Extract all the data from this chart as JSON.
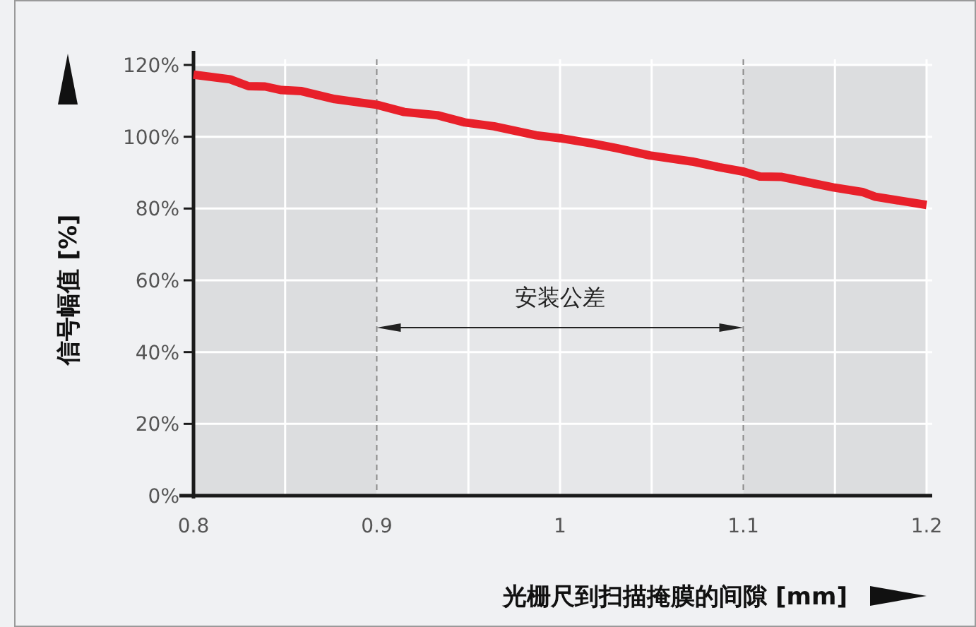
{
  "chart_data": {
    "type": "line",
    "xlabel": "光栅尺到扫描掩膜的间隙 [mm]",
    "ylabel": "信号幅值 [%]",
    "x": [
      0.8,
      0.82,
      0.83,
      0.839,
      0.848,
      0.859,
      0.877,
      0.9,
      0.915,
      0.933,
      0.948,
      0.964,
      0.987,
      1.0,
      1.018,
      1.031,
      1.049,
      1.072,
      1.087,
      1.1,
      1.109,
      1.121,
      1.149,
      1.165,
      1.172,
      1.2
    ],
    "series": [
      {
        "color": "#e8202a",
        "values": [
          117.3,
          116,
          114.1,
          114,
          113,
          112.7,
          110.5,
          108.9,
          106.9,
          106,
          104,
          102.9,
          100.4,
          99.6,
          98.1,
          96.8,
          94.8,
          93.1,
          91.5,
          90.3,
          88.9,
          88.8,
          85.9,
          84.6,
          83.3,
          81
        ]
      }
    ],
    "xlim": [
      0.8,
      1.2
    ],
    "xticks": [
      0.8,
      {
        "value": 0.85,
        "label": null
      },
      0.9,
      {
        "value": 0.95,
        "label": null
      },
      1,
      {
        "value": 1.05,
        "label": null
      },
      1.1,
      {
        "value": 1.15,
        "label": null
      },
      1.2
    ],
    "ylim": [
      0,
      120
    ],
    "yticks": [
      {
        "value": 0,
        "label": "0%"
      },
      {
        "value": 20,
        "label": "20%"
      },
      {
        "value": 40,
        "label": "40%"
      },
      {
        "value": 60,
        "label": "60%"
      },
      {
        "value": 80,
        "label": "80%"
      },
      {
        "value": 100,
        "label": "100%"
      },
      {
        "value": 120,
        "label": "120%"
      }
    ],
    "grid": true,
    "bands": [
      {
        "axis": "x",
        "from": 0.8,
        "to": 0.9,
        "color": "#dcdddf"
      },
      {
        "axis": "x",
        "from": 0.9,
        "to": 1.1,
        "color": "#e6e7e9",
        "label": "安装公差"
      },
      {
        "axis": "x",
        "from": 1.1,
        "to": 1.2,
        "color": "#dcdddf"
      }
    ]
  }
}
